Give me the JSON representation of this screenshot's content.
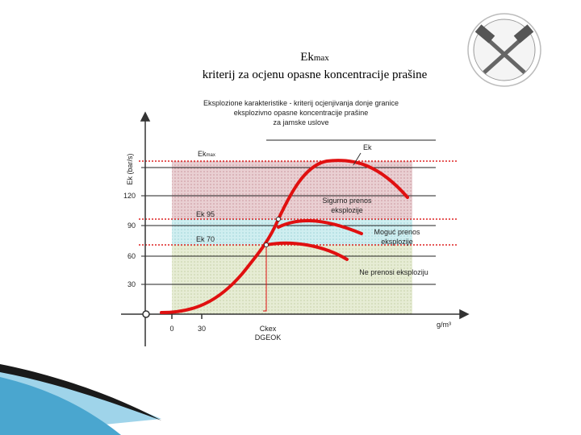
{
  "header": {
    "title_main": "Ek",
    "title_sub": "max",
    "title_line2": "kriterij za ocjenu opasne koncentracije prašine"
  },
  "figure": {
    "caption": [
      "Eksplozione karakteristike - kriterij ocjenjivanja donje granice",
      "eksplozivno opasne koncentracije prašine",
      "za jamske uslove"
    ],
    "y_axis_label": "Ek (bar/s)",
    "y_ticks": [
      "30",
      "60",
      "90",
      "120"
    ],
    "x_ticks": [
      "0",
      "30"
    ],
    "x_unit": "g/m³",
    "x_marker": [
      "Ckex",
      "DGEOK"
    ],
    "zone_labels": {
      "ekmax_main": "Ek",
      "ekmax_sub": "max",
      "ek95": "Ek 95",
      "ek70": "Ek 70",
      "curve": "Ek"
    },
    "annotations": [
      [
        "Sigurno prenos",
        "eksplozije"
      ],
      [
        "Moguć prenos",
        "eksplozije"
      ],
      [
        "Ne prenosi eksploziju"
      ]
    ]
  }
}
